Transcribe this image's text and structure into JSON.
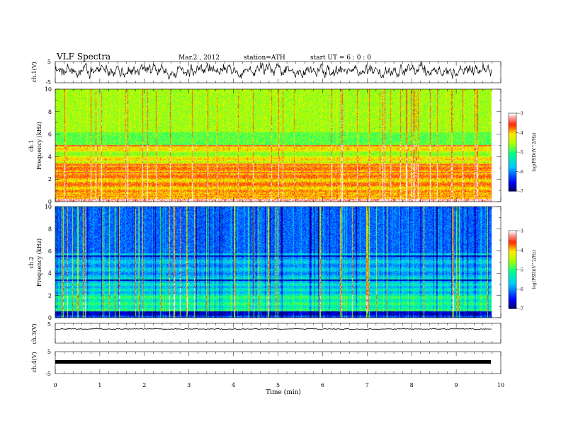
{
  "header": {
    "title": "VLF  Spectra",
    "date": "Mar.2  , 2012",
    "station": "station=ATH",
    "start": "start  UT  =   6  : 0  : 0"
  },
  "chart_data": [
    {
      "type": "line",
      "panel": "ch1-waveform",
      "ylabel": "ch.1(V)",
      "ylim": [
        -5,
        5
      ],
      "yticks": [
        "5",
        "-5"
      ]
    },
    {
      "type": "heatmap",
      "panel": "ch1-spectrogram",
      "ylabel_channel": "ch.1",
      "ylabel": "Frequency  (kHz)",
      "ylim": [
        0,
        10
      ],
      "yticks": [
        "10",
        "8",
        "6",
        "4",
        "2",
        "0"
      ],
      "colorbar": {
        "label": "log(PSD)(V^2/Hz)",
        "range": [
          -7,
          -3
        ],
        "ticks": [
          "-3",
          "-4",
          "-5",
          "-6",
          "-7"
        ]
      }
    },
    {
      "type": "heatmap",
      "panel": "ch2-spectrogram",
      "ylabel_channel": "ch.2",
      "ylabel": "Frequency  (kHz)",
      "ylim": [
        0,
        10
      ],
      "yticks": [
        "10",
        "8",
        "6",
        "4",
        "2",
        "0"
      ],
      "colorbar": {
        "label": "log(PSD)(V^2/Hz)",
        "range": [
          -7,
          -3
        ],
        "ticks": [
          "-3",
          "-4",
          "-5",
          "-6",
          "-7"
        ]
      }
    },
    {
      "type": "line",
      "panel": "ch3-waveform",
      "ylabel": "ch.3(V)",
      "ylim": [
        -5,
        5
      ],
      "yticks": [
        "5"
      ]
    },
    {
      "type": "line",
      "panel": "ch4-waveform",
      "ylabel": "ch.4(V)",
      "ylim": [
        -5,
        5
      ],
      "yticks": [
        "5",
        "-5"
      ]
    }
  ],
  "xaxis": {
    "label": "Time  (min)",
    "range": [
      0,
      10
    ],
    "data_end": 9.8,
    "ticks": [
      "0",
      "1",
      "2",
      "3",
      "4",
      "5",
      "6",
      "7",
      "8",
      "9",
      "10"
    ]
  }
}
